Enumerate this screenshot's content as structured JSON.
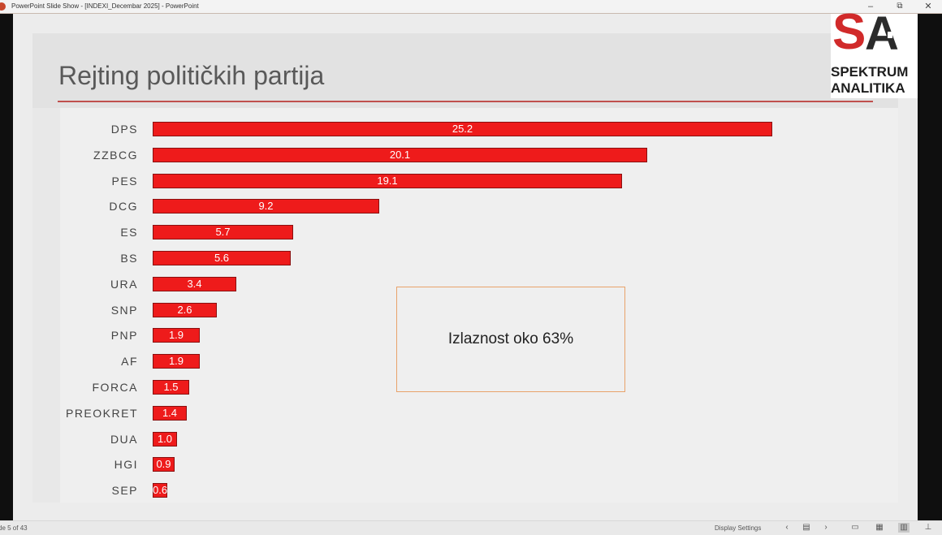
{
  "window": {
    "title": "PowerPoint Slide Show - [INDEXI_Decembar 2025] - PowerPoint",
    "controls": {
      "minimize": "–",
      "restore": "⧉",
      "close": "✕"
    }
  },
  "slide": {
    "title": "Rejting političkih partija",
    "logo": {
      "line1": "SPEKTRUM",
      "line2": "ANALITIKA",
      "mark_s": "S",
      "mark_a": "A"
    },
    "note": "Izlaznost oko 63%",
    "colors": {
      "bar": "#ee1b1b",
      "title_rule": "#c0504d",
      "note_border": "#e8a36b",
      "logo_red": "#d12a2a"
    }
  },
  "chart_data": {
    "type": "bar",
    "orientation": "horizontal",
    "categories": [
      "DPS",
      "ZZBCG",
      "PES",
      "DCG",
      "ES",
      "BS",
      "URA",
      "SNP",
      "PNP",
      "AF",
      "FORCA",
      "PREOKRET",
      "DUA",
      "HGI",
      "SEP"
    ],
    "values": [
      25.2,
      20.1,
      19.1,
      9.2,
      5.7,
      5.6,
      3.4,
      2.6,
      1.9,
      1.9,
      1.5,
      1.4,
      1.0,
      0.9,
      0.6
    ],
    "value_labels": [
      "25.2",
      "20.1",
      "19.1",
      "9.2",
      "5.7",
      "5.6",
      "3.4",
      "2.6",
      "1.9",
      "1.9",
      "1.5",
      "1.4",
      "1.0",
      "0.9",
      "0.6"
    ],
    "title": "",
    "xlabel": "",
    "ylabel": "",
    "xlim": [
      0,
      25.2
    ],
    "grid": false,
    "legend": "none"
  },
  "statusbar": {
    "slide_count": "de 5 of 43",
    "display_settings": "Display Settings",
    "nav_prev": "‹",
    "nav_next": "›"
  }
}
